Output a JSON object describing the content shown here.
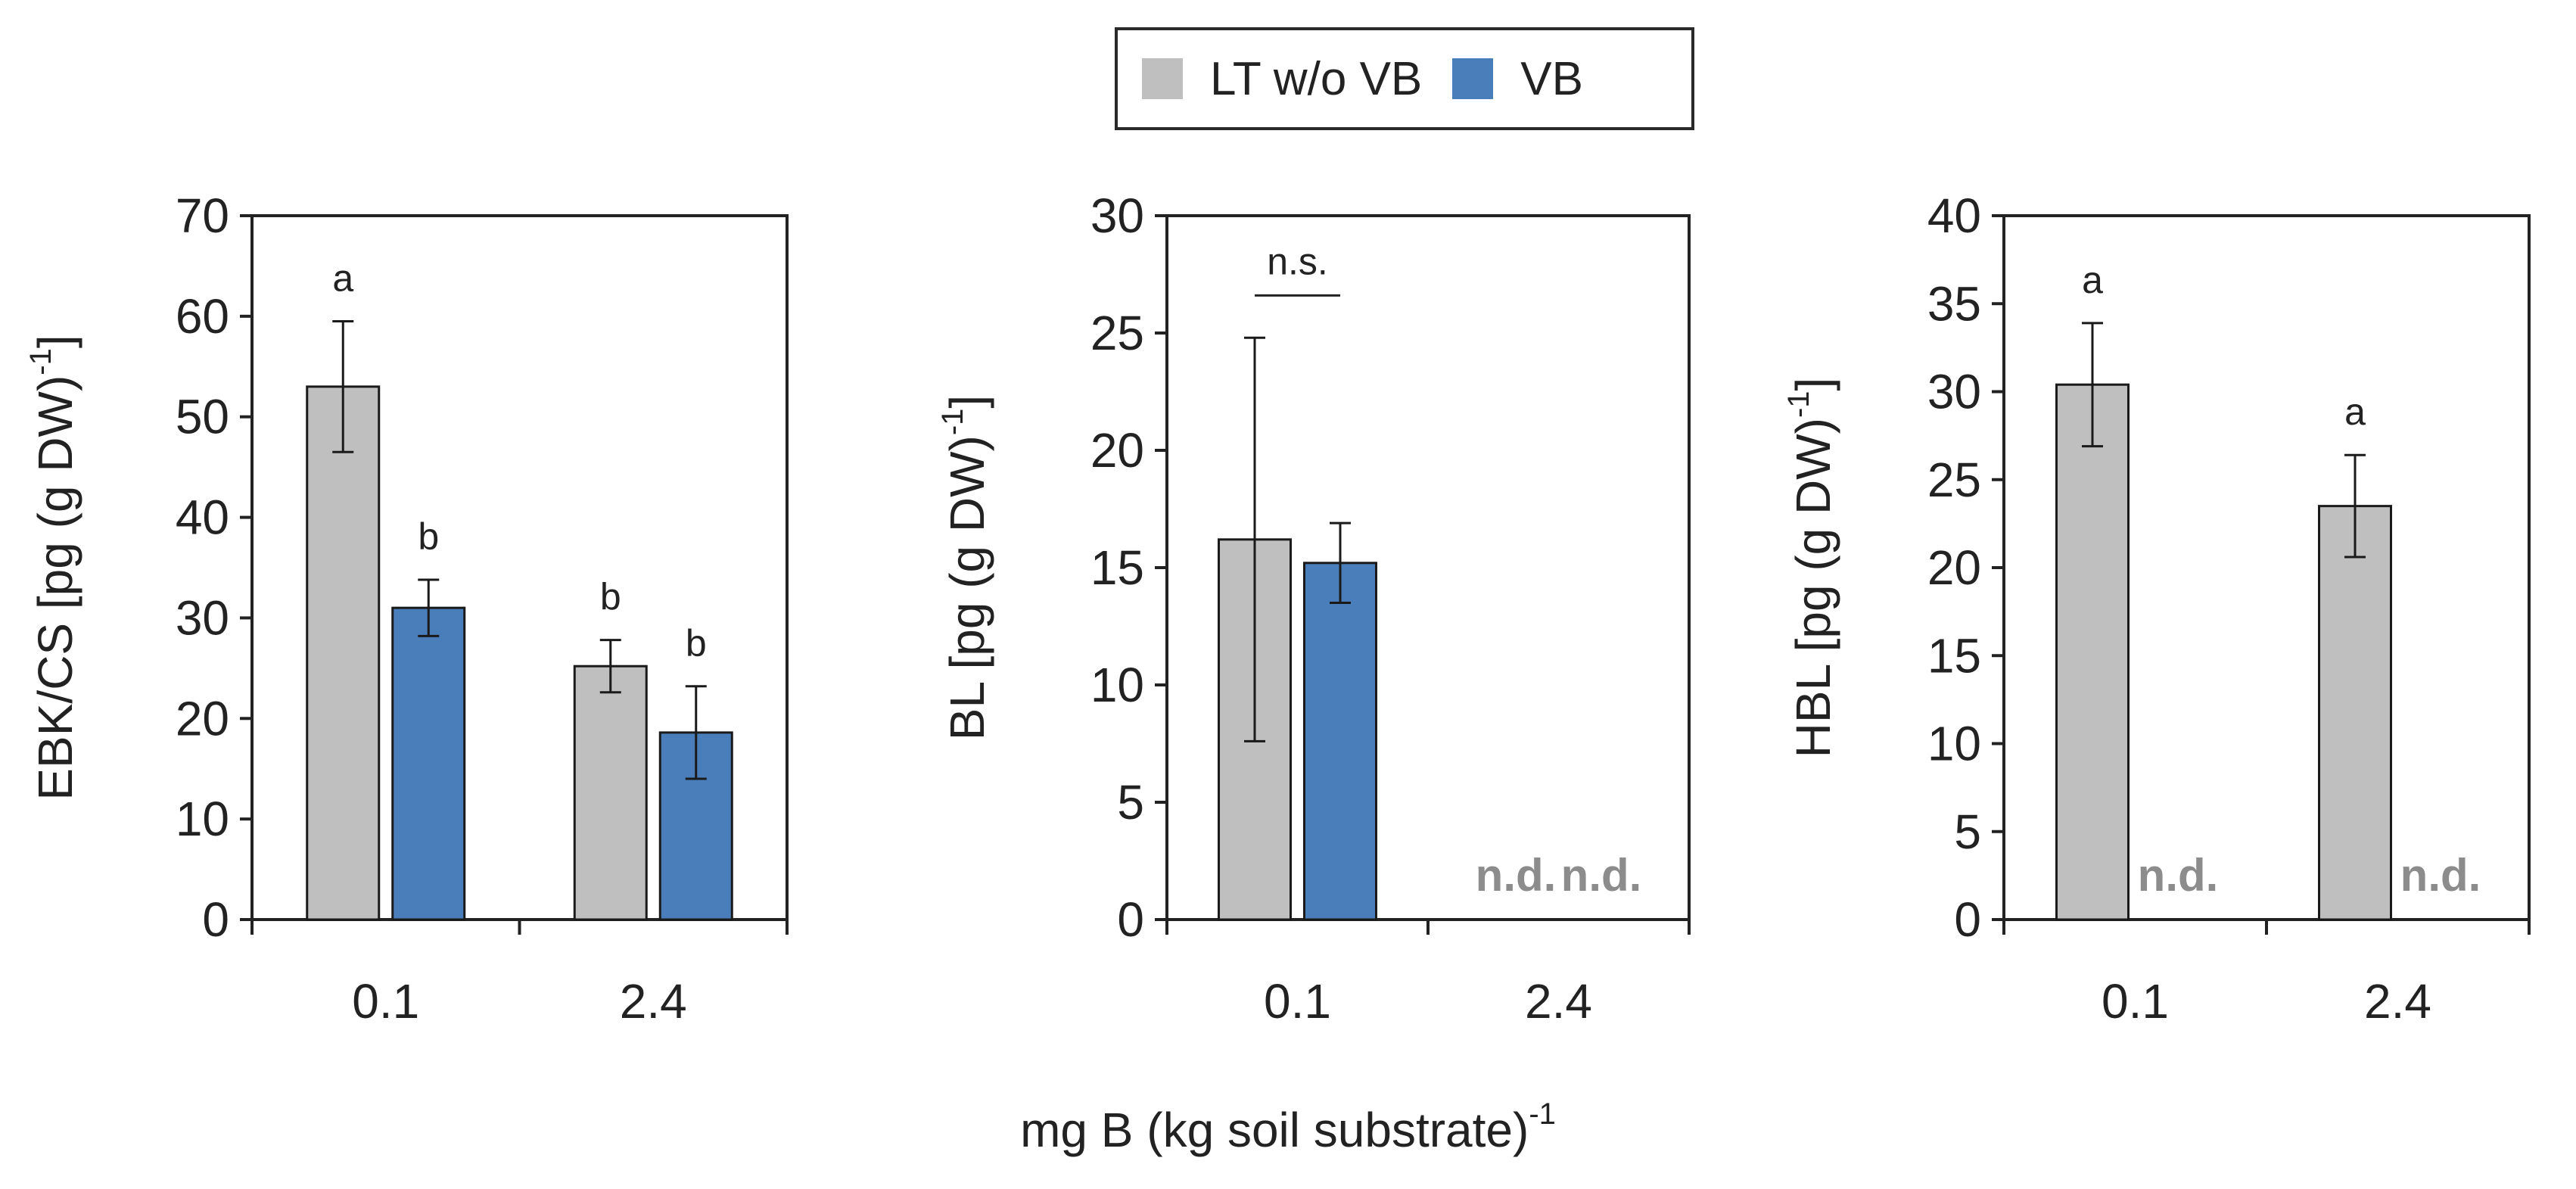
{
  "legend": {
    "items": [
      {
        "label": "LT w/o VB",
        "color": "#bfbfbf"
      },
      {
        "label": "VB",
        "color": "#4a7ebb"
      }
    ]
  },
  "x_axis_title": {
    "text": "mg B (kg soil substrate)",
    "superscript": "-1"
  },
  "colors": {
    "axis": "#222222",
    "nd": "#8c8c8c",
    "bar_edge": "#1a1a1a"
  },
  "chart_data": [
    {
      "type": "bar",
      "ylabel": "EBK/CS [pg (g DW)",
      "ylabel_sup": "-1",
      "ylabel_end": "]",
      "ylim": [
        0,
        70
      ],
      "yticks": [
        0,
        10,
        20,
        30,
        40,
        50,
        60,
        70
      ],
      "categories": [
        "0.1",
        "2.4"
      ],
      "series": [
        {
          "name": "LT w/o VB",
          "values": [
            53,
            25.2
          ],
          "errors": [
            6.5,
            2.6
          ],
          "labels": [
            "a",
            "b"
          ]
        },
        {
          "name": "VB",
          "values": [
            31,
            18.6
          ],
          "errors": [
            2.8,
            4.6
          ],
          "labels": [
            "b",
            "b"
          ]
        }
      ],
      "nd": [],
      "bracket": null
    },
    {
      "type": "bar",
      "ylabel": "BL [pg (g DW)",
      "ylabel_sup": "-1",
      "ylabel_end": "]",
      "ylim": [
        0,
        30
      ],
      "yticks": [
        0,
        5,
        10,
        15,
        20,
        25,
        30
      ],
      "categories": [
        "0.1",
        "2.4"
      ],
      "series": [
        {
          "name": "LT w/o VB",
          "values": [
            16.2,
            null
          ],
          "errors": [
            8.6,
            null
          ],
          "labels": [
            "",
            ""
          ]
        },
        {
          "name": "VB",
          "values": [
            15.2,
            null
          ],
          "errors": [
            1.7,
            null
          ],
          "labels": [
            "",
            ""
          ]
        }
      ],
      "nd": [
        {
          "category": 1,
          "series": 0,
          "text": "n.d."
        },
        {
          "category": 1,
          "series": 1,
          "text": "n.d."
        }
      ],
      "bracket": {
        "category": 0,
        "text": "n.s.",
        "y": 26.6
      }
    },
    {
      "type": "bar",
      "ylabel": "HBL [pg (g DW)",
      "ylabel_sup": "-1",
      "ylabel_end": "]",
      "ylim": [
        0,
        40
      ],
      "yticks": [
        0,
        5,
        10,
        15,
        20,
        25,
        30,
        35,
        40
      ],
      "categories": [
        "0.1",
        "2.4"
      ],
      "series": [
        {
          "name": "LT w/o VB",
          "values": [
            30.4,
            23.5
          ],
          "errors": [
            3.5,
            2.9
          ],
          "labels": [
            "a",
            "a"
          ]
        },
        {
          "name": "VB",
          "values": [
            null,
            null
          ],
          "errors": [
            null,
            null
          ],
          "labels": [
            "",
            ""
          ]
        }
      ],
      "nd": [
        {
          "category": 0,
          "series": 1,
          "text": "n.d."
        },
        {
          "category": 1,
          "series": 1,
          "text": "n.d."
        }
      ],
      "bracket": null
    }
  ]
}
